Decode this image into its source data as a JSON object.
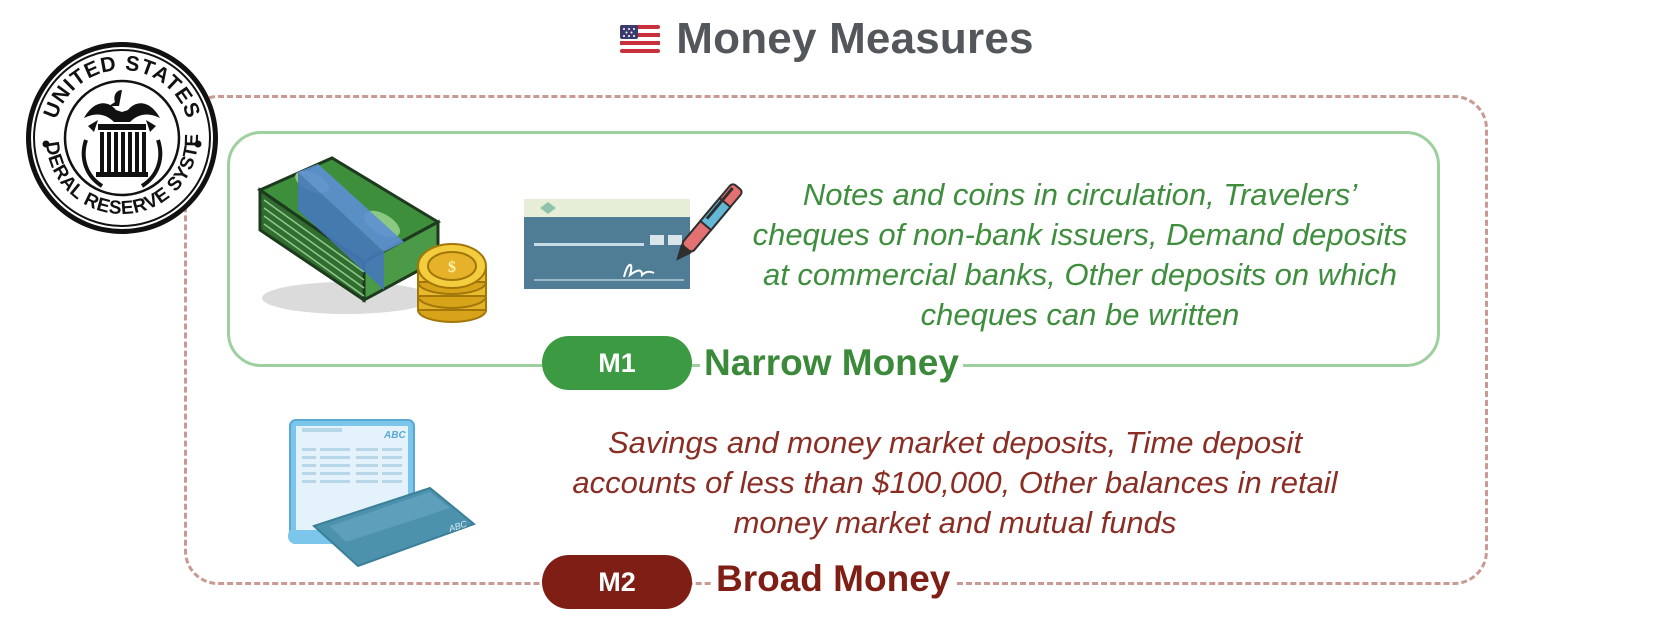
{
  "title": "Money Measures",
  "seal": {
    "top_text": "UNITED STATES",
    "bottom_text": "FEDERAL RESERVE SYSTEM"
  },
  "m1": {
    "badge": "M1",
    "name": "Narrow Money",
    "description": "Notes and coins in circulation, Travelers’ cheques of non-bank issuers, Demand deposits at commercial banks, Other deposits on which cheques can be written",
    "icons": [
      "cash-stack-icon",
      "coins-icon",
      "cheque-icon",
      "pen-icon"
    ]
  },
  "m2": {
    "badge": "M2",
    "name": "Broad Money",
    "description": "Savings and money market deposits, Time deposit accounts of less than $100,000, Other balances in retail money market and mutual funds",
    "icons": [
      "bank-statement-icon",
      "bank-card-icon"
    ],
    "statement_label": "ABC",
    "card_label": "ABC"
  },
  "colors": {
    "title": "#53575c",
    "m1_green": "#3c9a42",
    "m1_text": "#3e8e3e",
    "m1_border": "#9dcf9f",
    "m2_red": "#7f1e15",
    "m2_text": "#8a2e25",
    "outer_dashed": "#c99a94"
  }
}
